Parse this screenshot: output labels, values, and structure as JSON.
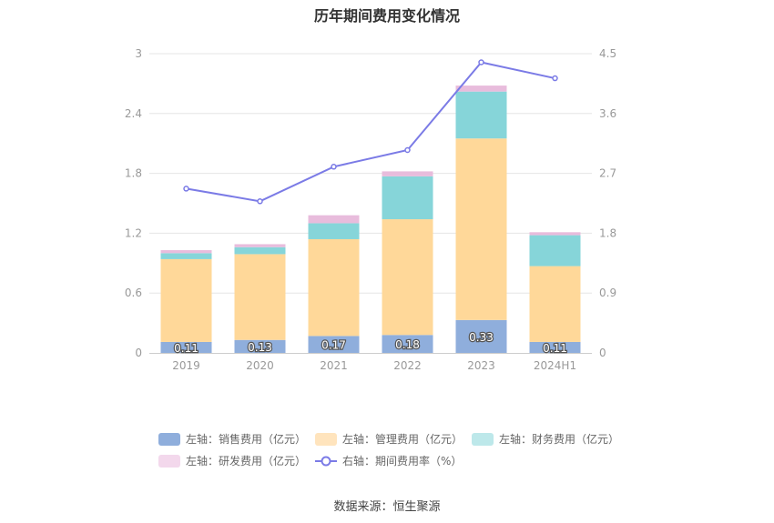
{
  "title": "历年期间费用变化情况",
  "source": "数据来源：恒生聚源",
  "colors": {
    "sales": "#8faedc",
    "mgmt": "#ffd899",
    "fin": "#86d5d9",
    "rd": "#e8bcdc",
    "rate": "#7b7be6",
    "axis_text": "#999999",
    "grid": "#e6e6e6"
  },
  "legend": [
    {
      "label": "左轴：销售费用（亿元）",
      "color": "#8faedc",
      "kind": "bar"
    },
    {
      "label": "左轴：管理费用（亿元）",
      "color": "#ffe4bd",
      "kind": "bar"
    },
    {
      "label": "左轴：财务费用（亿元）",
      "color": "#bde8ea",
      "kind": "bar"
    },
    {
      "label": "左轴：研发费用（亿元）",
      "color": "#f3d8ec",
      "kind": "bar"
    },
    {
      "label": "右轴：期间费用率（%）",
      "color": "#7b7be6",
      "kind": "line"
    }
  ],
  "chart_data": {
    "type": "bar",
    "categories": [
      "2019",
      "2020",
      "2021",
      "2022",
      "2023",
      "2024H1"
    ],
    "series": [
      {
        "name": "左轴：销售费用（亿元）",
        "axis": "left",
        "values": [
          0.11,
          0.13,
          0.17,
          0.18,
          0.33,
          0.11
        ]
      },
      {
        "name": "左轴：管理费用（亿元）",
        "axis": "left",
        "values": [
          0.83,
          0.86,
          0.97,
          1.16,
          1.82,
          0.76
        ]
      },
      {
        "name": "左轴：财务费用（亿元）",
        "axis": "left",
        "values": [
          0.06,
          0.07,
          0.16,
          0.43,
          0.47,
          0.31
        ]
      },
      {
        "name": "左轴：研发费用（亿元）",
        "axis": "left",
        "values": [
          0.03,
          0.03,
          0.08,
          0.05,
          0.06,
          0.03
        ]
      },
      {
        "name": "右轴：期间费用率（%）",
        "axis": "right",
        "type": "line",
        "values": [
          2.47,
          2.28,
          2.8,
          3.05,
          4.37,
          4.13
        ]
      }
    ],
    "data_labels": [
      "0.11",
      "0.13",
      "0.17",
      "0.18",
      "0.33",
      "0.11"
    ],
    "y_left": {
      "min": 0,
      "max": 3,
      "ticks": [
        "0",
        "0.6",
        "1.2",
        "1.8",
        "2.4",
        "3"
      ]
    },
    "y_right": {
      "min": 0,
      "max": 4.5,
      "ticks": [
        "0",
        "0.9",
        "1.8",
        "2.7",
        "3.6",
        "4.5"
      ]
    },
    "grid": true,
    "legend_position": "bottom"
  }
}
